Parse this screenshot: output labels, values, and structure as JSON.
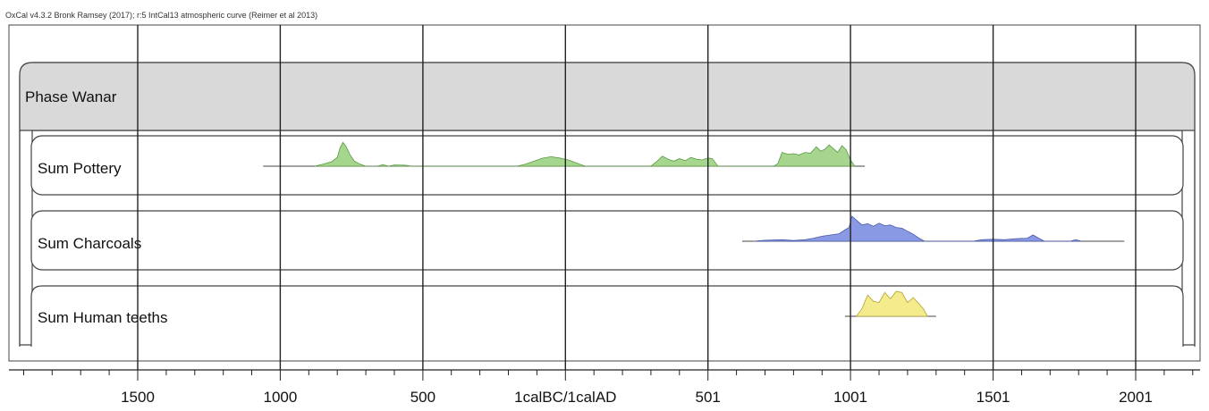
{
  "header": {
    "text": "OxCal v4.3.2 Bronk Ramsey (2017); r:5 IntCal13 atmospheric curve (Reimer et al 2013)"
  },
  "phase": {
    "label": "Phase Wanar"
  },
  "chart_data": {
    "type": "area",
    "x_axis": {
      "range": [
        -2450,
        2230
      ],
      "ticks": [
        {
          "value": -1500,
          "label": "1500"
        },
        {
          "value": -1000,
          "label": "1000"
        },
        {
          "value": -500,
          "label": "500"
        },
        {
          "value": 0,
          "label": "1calBC/1calAD"
        },
        {
          "value": 500,
          "label": "501"
        },
        {
          "value": 1000,
          "label": "1001"
        },
        {
          "value": 1500,
          "label": "1501"
        },
        {
          "value": 2000,
          "label": "2001"
        }
      ],
      "minor_step": 100,
      "grid": true
    },
    "series": [
      {
        "name": "Sum Pottery",
        "color": "#a6d68e",
        "stroke": "#5a9a45",
        "range": [
          -1060,
          1050
        ],
        "points": [
          [
            -880,
            0
          ],
          [
            -850,
            0.08
          ],
          [
            -820,
            0.18
          ],
          [
            -800,
            0.35
          ],
          [
            -790,
            0.75
          ],
          [
            -780,
            0.95
          ],
          [
            -770,
            0.8
          ],
          [
            -755,
            0.45
          ],
          [
            -740,
            0.2
          ],
          [
            -720,
            0.08
          ],
          [
            -700,
            0
          ],
          [
            -660,
            0
          ],
          [
            -640,
            0.06
          ],
          [
            -620,
            0
          ],
          [
            -600,
            0.05
          ],
          [
            -560,
            0.04
          ],
          [
            -540,
            0
          ],
          [
            -170,
            0
          ],
          [
            -140,
            0.08
          ],
          [
            -110,
            0.2
          ],
          [
            -80,
            0.32
          ],
          [
            -50,
            0.38
          ],
          [
            -20,
            0.33
          ],
          [
            10,
            0.25
          ],
          [
            40,
            0.12
          ],
          [
            70,
            0
          ],
          [
            300,
            0
          ],
          [
            320,
            0.18
          ],
          [
            340,
            0.4
          ],
          [
            360,
            0.28
          ],
          [
            380,
            0.2
          ],
          [
            400,
            0.3
          ],
          [
            420,
            0.22
          ],
          [
            440,
            0.35
          ],
          [
            460,
            0.28
          ],
          [
            480,
            0.25
          ],
          [
            500,
            0.33
          ],
          [
            515,
            0.3
          ],
          [
            535,
            0
          ],
          [
            730,
            0
          ],
          [
            745,
            0.1
          ],
          [
            760,
            0.55
          ],
          [
            780,
            0.48
          ],
          [
            800,
            0.5
          ],
          [
            820,
            0.45
          ],
          [
            840,
            0.55
          ],
          [
            860,
            0.52
          ],
          [
            880,
            0.78
          ],
          [
            895,
            0.6
          ],
          [
            910,
            0.68
          ],
          [
            925,
            0.85
          ],
          [
            940,
            0.7
          ],
          [
            955,
            0.55
          ],
          [
            970,
            0.82
          ],
          [
            985,
            0.65
          ],
          [
            1000,
            0.25
          ],
          [
            1015,
            0
          ]
        ]
      },
      {
        "name": "Sum Charcoals",
        "color": "#8a99e3",
        "stroke": "#4a5aa8",
        "range": [
          620,
          1960
        ],
        "points": [
          [
            660,
            0
          ],
          [
            700,
            0.04
          ],
          [
            760,
            0.06
          ],
          [
            800,
            0.03
          ],
          [
            840,
            0.06
          ],
          [
            870,
            0.12
          ],
          [
            900,
            0.2
          ],
          [
            930,
            0.25
          ],
          [
            960,
            0.3
          ],
          [
            980,
            0.45
          ],
          [
            995,
            0.55
          ],
          [
            1005,
            1.0
          ],
          [
            1020,
            0.85
          ],
          [
            1040,
            0.65
          ],
          [
            1060,
            0.7
          ],
          [
            1080,
            0.6
          ],
          [
            1100,
            0.72
          ],
          [
            1120,
            0.62
          ],
          [
            1140,
            0.65
          ],
          [
            1160,
            0.55
          ],
          [
            1180,
            0.52
          ],
          [
            1200,
            0.4
          ],
          [
            1220,
            0.28
          ],
          [
            1240,
            0.12
          ],
          [
            1260,
            0
          ],
          [
            1430,
            0
          ],
          [
            1460,
            0.06
          ],
          [
            1500,
            0.08
          ],
          [
            1540,
            0.06
          ],
          [
            1580,
            0.1
          ],
          [
            1620,
            0.12
          ],
          [
            1640,
            0.25
          ],
          [
            1660,
            0.12
          ],
          [
            1680,
            0
          ],
          [
            1770,
            0
          ],
          [
            1790,
            0.06
          ],
          [
            1810,
            0
          ]
        ]
      },
      {
        "name": "Sum Human teeths",
        "color": "#f4ec8c",
        "stroke": "#b0a030",
        "range": [
          980,
          1300
        ],
        "points": [
          [
            1020,
            0
          ],
          [
            1040,
            0.3
          ],
          [
            1060,
            0.85
          ],
          [
            1080,
            0.6
          ],
          [
            1100,
            0.55
          ],
          [
            1120,
            0.95
          ],
          [
            1140,
            0.7
          ],
          [
            1160,
            1.0
          ],
          [
            1180,
            0.95
          ],
          [
            1200,
            0.55
          ],
          [
            1220,
            0.75
          ],
          [
            1240,
            0.5
          ],
          [
            1255,
            0.3
          ],
          [
            1270,
            0
          ]
        ]
      }
    ]
  }
}
